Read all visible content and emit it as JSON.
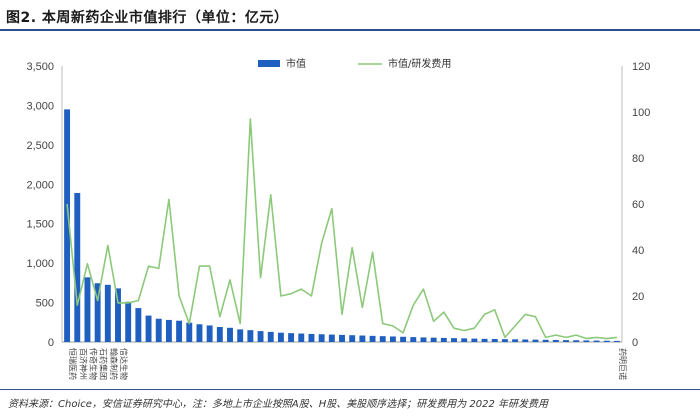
{
  "header": {
    "title": "图2. 本周新药企业市值排行（单位：亿元）"
  },
  "footer": {
    "source": "资料来源：Choice，安信证券研究中心，注：多地上市企业按照A股、H股、美股顺序选择；研发费用为 2022 年研发费用"
  },
  "colors": {
    "bar": "#1f5fbf",
    "line": "#8cc97a",
    "rule": "#2f4e8f"
  },
  "chart_data": {
    "type": "bar",
    "legend": {
      "placement": "top-center",
      "entries": [
        "市值",
        "市值/研发费用"
      ]
    },
    "grid": false,
    "y_left": {
      "ylim": [
        0,
        3500
      ],
      "ticks": [
        "0",
        "500",
        "1,000",
        "1,500",
        "2,000",
        "2,500",
        "3,000",
        "3,500"
      ]
    },
    "y_right": {
      "ylim": [
        0,
        120
      ],
      "ticks": [
        "0",
        "20",
        "40",
        "60",
        "80",
        "100",
        "120"
      ]
    },
    "categories": [
      "恒瑞医药",
      "百济神州",
      "传奇生物",
      "石药集团",
      "翰森制药",
      "信达生物",
      "",
      "",
      "",
      "",
      "",
      "",
      "",
      "",
      "",
      "",
      "",
      "",
      "",
      "",
      "",
      "",
      "",
      "",
      "",
      "",
      "",
      "",
      "",
      "",
      "",
      "",
      "",
      "",
      "",
      "",
      "",
      "",
      "",
      "",
      "",
      "",
      "",
      "",
      "",
      "",
      "",
      "",
      "",
      "",
      "",
      "",
      "",
      "",
      "药明巨诺"
    ],
    "series": [
      {
        "name": "市值",
        "axis": "left",
        "kind": "bar",
        "values": [
          2950,
          1890,
          820,
          745,
          725,
          680,
          510,
          430,
          335,
          295,
          280,
          270,
          245,
          225,
          210,
          190,
          180,
          160,
          150,
          138,
          128,
          118,
          112,
          107,
          102,
          98,
          94,
          90,
          86,
          82,
          78,
          74,
          70,
          66,
          62,
          58,
          55,
          52,
          49,
          46,
          43,
          40,
          38,
          36,
          34,
          32,
          30,
          28,
          26,
          24,
          22,
          20,
          18,
          16,
          14
        ]
      },
      {
        "name": "市值/研发费用",
        "axis": "right",
        "kind": "line",
        "values": [
          60,
          16,
          34,
          18,
          42,
          17,
          17,
          18,
          33,
          32,
          62,
          20,
          8,
          33,
          33,
          11,
          27,
          8,
          97,
          28,
          64,
          20,
          21,
          23,
          20,
          43,
          58,
          12,
          41,
          15,
          39,
          8,
          7,
          4,
          16,
          23,
          9,
          13,
          6,
          5,
          6,
          12,
          14,
          2,
          7,
          12,
          11,
          2,
          3,
          2,
          3,
          1.5,
          2,
          1.5,
          2
        ]
      }
    ]
  }
}
